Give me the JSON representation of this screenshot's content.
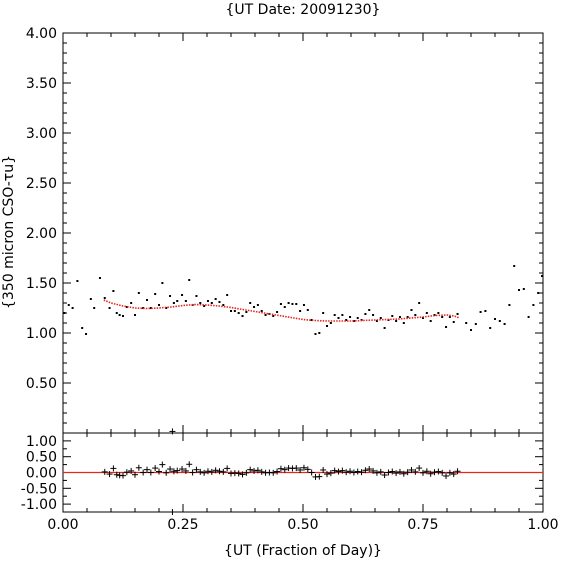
{
  "chart_data": [
    {
      "type": "scatter",
      "title": "{UT Date: 20091230}",
      "xlabel": "",
      "ylabel": "{350 micron CSO-τu}",
      "xlim": [
        0.0,
        1.0
      ],
      "ylim": [
        0.0,
        4.0
      ],
      "x_ticks": [
        "0.00",
        "0.25",
        "0.50",
        "0.75",
        "1.00"
      ],
      "y_ticks": [
        "0.50",
        "1.00",
        "1.50",
        "2.00",
        "2.50",
        "3.00",
        "3.50",
        "4.00"
      ],
      "grid": false,
      "colors": {
        "points": "#000000",
        "fit": "#e8251f"
      },
      "points": [
        [
          0.003,
          1.2
        ],
        [
          0.012,
          1.28
        ],
        [
          0.02,
          1.25
        ],
        [
          0.03,
          1.52
        ],
        [
          0.04,
          1.05
        ],
        [
          0.048,
          0.99
        ],
        [
          0.058,
          1.34
        ],
        [
          0.065,
          1.25
        ],
        [
          0.077,
          1.55
        ],
        [
          0.087,
          1.35
        ],
        [
          0.097,
          1.25
        ],
        [
          0.105,
          1.42
        ],
        [
          0.112,
          1.2
        ],
        [
          0.118,
          1.18
        ],
        [
          0.125,
          1.17
        ],
        [
          0.133,
          1.26
        ],
        [
          0.142,
          1.3
        ],
        [
          0.15,
          1.18
        ],
        [
          0.158,
          1.4
        ],
        [
          0.167,
          1.25
        ],
        [
          0.175,
          1.33
        ],
        [
          0.183,
          1.25
        ],
        [
          0.192,
          1.39
        ],
        [
          0.2,
          1.28
        ],
        [
          0.207,
          1.5
        ],
        [
          0.215,
          1.25
        ],
        [
          0.223,
          1.37
        ],
        [
          0.231,
          1.3
        ],
        [
          0.238,
          1.32
        ],
        [
          0.248,
          1.38
        ],
        [
          0.256,
          1.32
        ],
        [
          0.263,
          1.53
        ],
        [
          0.27,
          1.28
        ],
        [
          0.278,
          1.37
        ],
        [
          0.286,
          1.3
        ],
        [
          0.294,
          1.27
        ],
        [
          0.302,
          1.32
        ],
        [
          0.31,
          1.3
        ],
        [
          0.318,
          1.34
        ],
        [
          0.326,
          1.31
        ],
        [
          0.334,
          1.28
        ],
        [
          0.342,
          1.38
        ],
        [
          0.35,
          1.22
        ],
        [
          0.358,
          1.22
        ],
        [
          0.366,
          1.2
        ],
        [
          0.374,
          1.17
        ],
        [
          0.382,
          1.21
        ],
        [
          0.39,
          1.3
        ],
        [
          0.398,
          1.26
        ],
        [
          0.406,
          1.28
        ],
        [
          0.414,
          1.22
        ],
        [
          0.422,
          1.18
        ],
        [
          0.43,
          1.19
        ],
        [
          0.438,
          1.17
        ],
        [
          0.446,
          1.21
        ],
        [
          0.454,
          1.29
        ],
        [
          0.462,
          1.26
        ],
        [
          0.47,
          1.3
        ],
        [
          0.478,
          1.29
        ],
        [
          0.486,
          1.29
        ],
        [
          0.494,
          1.22
        ],
        [
          0.502,
          1.28
        ],
        [
          0.51,
          1.23
        ],
        [
          0.518,
          1.13
        ],
        [
          0.526,
          0.99
        ],
        [
          0.534,
          1.0
        ],
        [
          0.542,
          1.2
        ],
        [
          0.55,
          1.07
        ],
        [
          0.558,
          1.1
        ],
        [
          0.566,
          1.18
        ],
        [
          0.574,
          1.15
        ],
        [
          0.582,
          1.18
        ],
        [
          0.59,
          1.13
        ],
        [
          0.598,
          1.16
        ],
        [
          0.606,
          1.12
        ],
        [
          0.614,
          1.15
        ],
        [
          0.622,
          1.13
        ],
        [
          0.63,
          1.19
        ],
        [
          0.638,
          1.23
        ],
        [
          0.646,
          1.18
        ],
        [
          0.654,
          1.12
        ],
        [
          0.662,
          1.15
        ],
        [
          0.67,
          1.05
        ],
        [
          0.678,
          1.13
        ],
        [
          0.686,
          1.17
        ],
        [
          0.694,
          1.12
        ],
        [
          0.702,
          1.16
        ],
        [
          0.71,
          1.1
        ],
        [
          0.718,
          1.16
        ],
        [
          0.726,
          1.23
        ],
        [
          0.734,
          1.18
        ],
        [
          0.742,
          1.3
        ],
        [
          0.75,
          1.15
        ],
        [
          0.758,
          1.2
        ],
        [
          0.766,
          1.12
        ],
        [
          0.774,
          1.18
        ],
        [
          0.782,
          1.2
        ],
        [
          0.79,
          1.16
        ],
        [
          0.798,
          1.06
        ],
        [
          0.806,
          1.16
        ],
        [
          0.814,
          1.11
        ],
        [
          0.822,
          1.19
        ],
        [
          0.84,
          1.1
        ],
        [
          0.85,
          1.03
        ],
        [
          0.86,
          1.09
        ],
        [
          0.87,
          1.21
        ],
        [
          0.88,
          1.22
        ],
        [
          0.89,
          1.05
        ],
        [
          0.9,
          1.14
        ],
        [
          0.91,
          1.12
        ],
        [
          0.92,
          1.09
        ],
        [
          0.93,
          1.28
        ],
        [
          0.94,
          1.67
        ],
        [
          0.95,
          1.43
        ],
        [
          0.96,
          1.44
        ],
        [
          0.97,
          1.16
        ],
        [
          0.98,
          1.28
        ],
        [
          0.99,
          1.4
        ],
        [
          0.998,
          1.57
        ]
      ],
      "fit": {
        "name": "",
        "x": [
          0.085,
          0.1,
          0.125,
          0.15,
          0.175,
          0.2,
          0.225,
          0.25,
          0.275,
          0.3,
          0.325,
          0.35,
          0.375,
          0.4,
          0.425,
          0.45,
          0.475,
          0.5,
          0.525,
          0.55,
          0.575,
          0.6,
          0.625,
          0.65,
          0.675,
          0.7,
          0.725,
          0.75,
          0.775,
          0.8,
          0.815,
          0.826
        ],
        "y": [
          1.33,
          1.3,
          1.27,
          1.25,
          1.245,
          1.25,
          1.26,
          1.275,
          1.285,
          1.28,
          1.27,
          1.255,
          1.235,
          1.215,
          1.195,
          1.175,
          1.155,
          1.135,
          1.125,
          1.12,
          1.12,
          1.12,
          1.125,
          1.13,
          1.135,
          1.14,
          1.15,
          1.16,
          1.175,
          1.18,
          1.17,
          1.15
        ]
      }
    },
    {
      "type": "scatter",
      "title": "",
      "xlabel": "{UT (Fraction of Day)}",
      "ylabel": "",
      "xlim": [
        0.0,
        1.0
      ],
      "ylim": [
        -1.25,
        1.25
      ],
      "x_ticks": [
        "0.00",
        "0.25",
        "0.50",
        "0.75",
        "1.00"
      ],
      "y_ticks": [
        "1.00",
        "0.50",
        "0.00",
        "-0.50",
        "-1.00"
      ],
      "grid": false,
      "zero_line": 0.0,
      "colors": {
        "points": "#000000",
        "zero_line": "#e8251f"
      },
      "residuals": [
        [
          0.087,
          0.02
        ],
        [
          0.097,
          -0.05
        ],
        [
          0.105,
          0.13
        ],
        [
          0.112,
          -0.07
        ],
        [
          0.118,
          -0.09
        ],
        [
          0.125,
          -0.1
        ],
        [
          0.133,
          0.01
        ],
        [
          0.142,
          0.05
        ],
        [
          0.15,
          -0.07
        ],
        [
          0.158,
          0.15
        ],
        [
          0.167,
          0.0
        ],
        [
          0.175,
          0.09
        ],
        [
          0.183,
          0.0
        ],
        [
          0.192,
          0.14
        ],
        [
          0.2,
          0.03
        ],
        [
          0.207,
          0.25
        ],
        [
          0.215,
          -0.01
        ],
        [
          0.223,
          0.11
        ],
        [
          0.231,
          0.04
        ],
        [
          0.238,
          0.06
        ],
        [
          0.248,
          0.11
        ],
        [
          0.256,
          0.05
        ],
        [
          0.263,
          0.26
        ],
        [
          0.27,
          0.0
        ],
        [
          0.278,
          0.09
        ],
        [
          0.286,
          0.02
        ],
        [
          0.294,
          -0.01
        ],
        [
          0.302,
          0.04
        ],
        [
          0.31,
          0.02
        ],
        [
          0.318,
          0.07
        ],
        [
          0.326,
          0.04
        ],
        [
          0.334,
          0.02
        ],
        [
          0.342,
          0.13
        ],
        [
          0.35,
          -0.03
        ],
        [
          0.358,
          -0.02
        ],
        [
          0.366,
          -0.03
        ],
        [
          0.374,
          -0.06
        ],
        [
          0.382,
          -0.01
        ],
        [
          0.39,
          0.09
        ],
        [
          0.398,
          0.05
        ],
        [
          0.406,
          0.07
        ],
        [
          0.414,
          0.02
        ],
        [
          0.422,
          -0.01
        ],
        [
          0.43,
          0.0
        ],
        [
          0.438,
          -0.01
        ],
        [
          0.446,
          0.03
        ],
        [
          0.454,
          0.12
        ],
        [
          0.462,
          0.09
        ],
        [
          0.47,
          0.14
        ],
        [
          0.478,
          0.13
        ],
        [
          0.486,
          0.14
        ],
        [
          0.494,
          0.08
        ],
        [
          0.502,
          0.15
        ],
        [
          0.51,
          0.1
        ],
        [
          0.518,
          0.0
        ],
        [
          0.526,
          -0.14
        ],
        [
          0.534,
          -0.13
        ],
        [
          0.542,
          0.08
        ],
        [
          0.55,
          -0.05
        ],
        [
          0.558,
          -0.02
        ],
        [
          0.566,
          0.06
        ],
        [
          0.574,
          0.03
        ],
        [
          0.582,
          0.06
        ],
        [
          0.59,
          0.01
        ],
        [
          0.598,
          0.04
        ],
        [
          0.606,
          0.0
        ],
        [
          0.614,
          0.03
        ],
        [
          0.622,
          0.01
        ],
        [
          0.63,
          0.07
        ],
        [
          0.638,
          0.11
        ],
        [
          0.646,
          0.05
        ],
        [
          0.654,
          -0.01
        ],
        [
          0.662,
          0.02
        ],
        [
          0.67,
          -0.08
        ],
        [
          0.678,
          0.0
        ],
        [
          0.686,
          0.03
        ],
        [
          0.694,
          -0.02
        ],
        [
          0.702,
          0.02
        ],
        [
          0.71,
          -0.04
        ],
        [
          0.718,
          0.01
        ],
        [
          0.726,
          0.08
        ],
        [
          0.734,
          0.02
        ],
        [
          0.742,
          0.14
        ],
        [
          0.75,
          -0.01
        ],
        [
          0.758,
          0.04
        ],
        [
          0.766,
          -0.04
        ],
        [
          0.774,
          0.01
        ],
        [
          0.782,
          0.03
        ],
        [
          0.79,
          -0.01
        ],
        [
          0.798,
          -0.11
        ],
        [
          0.806,
          -0.01
        ],
        [
          0.814,
          -0.05
        ],
        [
          0.822,
          0.04
        ]
      ],
      "outliers": [
        [
          0.228,
          1.3
        ],
        [
          0.228,
          -1.25
        ]
      ]
    }
  ]
}
